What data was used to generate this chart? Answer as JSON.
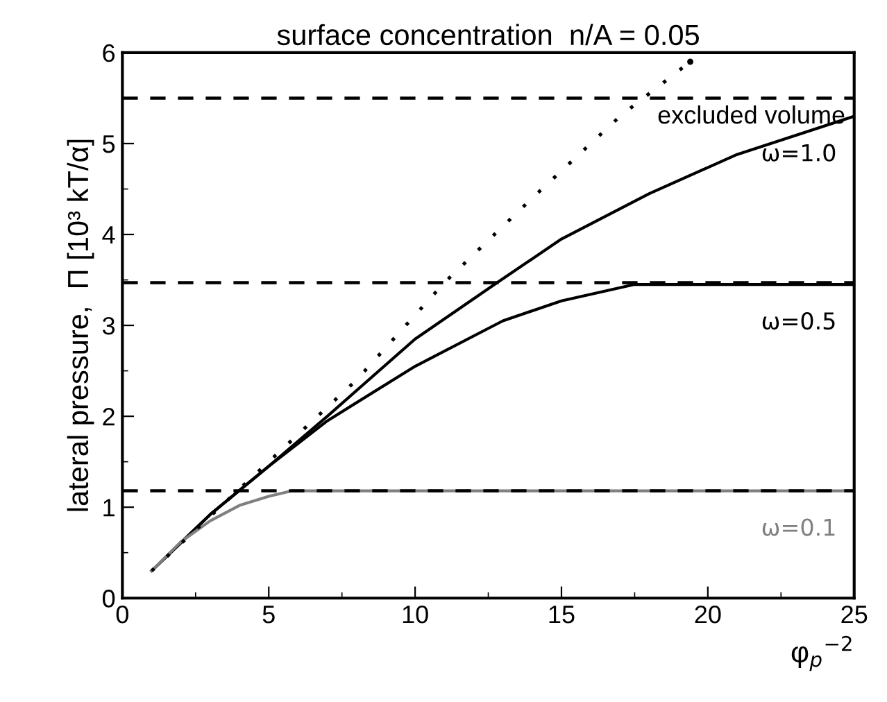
{
  "chart_data": {
    "type": "line",
    "title": "surface concentration  n/A = 0.05",
    "xlabel": "φ$_{p}$$^{−2}$",
    "ylabel": "lateral pressure,  Π [10³ kT/α]",
    "xlim": [
      0,
      25
    ],
    "ylim": [
      0,
      6
    ],
    "xticks": [
      0,
      {
        "value": 2.5,
        "label": null
      },
      5,
      {
        "value": 7.5,
        "label": null
      },
      10,
      {
        "value": 12.5,
        "label": null
      },
      15,
      {
        "value": 17.5,
        "label": null
      },
      20,
      {
        "value": 22.5,
        "label": null
      },
      25
    ],
    "yticks": [
      0,
      {
        "value": 0.5,
        "label": null
      },
      1,
      {
        "value": 1.5,
        "label": null
      },
      2,
      {
        "value": 2.5,
        "label": null
      },
      3,
      {
        "value": 3.5,
        "label": null
      },
      4,
      {
        "value": 4.5,
        "label": null
      },
      5,
      {
        "value": 5.5,
        "label": null
      },
      6
    ],
    "grid": false,
    "legend": false,
    "series": [
      {
        "name": "ω=1.0",
        "color": "#000000",
        "line_style": "solid",
        "x": [
          1,
          3,
          5,
          7,
          10,
          12.8,
          15,
          18,
          21,
          25
        ],
        "values": [
          0.3,
          0.92,
          1.45,
          2.0,
          2.85,
          3.47,
          3.95,
          4.45,
          4.88,
          5.3
        ]
      },
      {
        "name": "ω=0.5",
        "color": "#000000",
        "line_style": "solid",
        "x": [
          1,
          3,
          5,
          7,
          10,
          13,
          15,
          17.5,
          25
        ],
        "values": [
          0.3,
          0.92,
          1.45,
          1.95,
          2.55,
          3.05,
          3.27,
          3.45,
          3.45
        ]
      },
      {
        "name": "ω=0.1",
        "color": "#808080",
        "line_style": "solid",
        "x": [
          1,
          2,
          3,
          4,
          5,
          5.8,
          25
        ],
        "values": [
          0.3,
          0.62,
          0.85,
          1.02,
          1.12,
          1.18,
          1.18
        ]
      },
      {
        "color": "#000000",
        "line_style": "dotted",
        "x": [
          1,
          5,
          8,
          11,
          14,
          17,
          19.4
        ],
        "values": [
          0.3,
          1.5,
          2.4,
          3.47,
          4.4,
          5.3,
          5.9
        ]
      }
    ],
    "ref_lines": [
      {
        "axis": "y",
        "value": 5.5,
        "label": "excluded volume",
        "color": "#000000",
        "line_style": "dashed"
      },
      {
        "axis": "y",
        "value": 3.47,
        "color": "#000000",
        "line_style": "dashed"
      },
      {
        "axis": "y",
        "value": 1.18,
        "color": "#000000",
        "line_style": "dashed"
      }
    ]
  }
}
